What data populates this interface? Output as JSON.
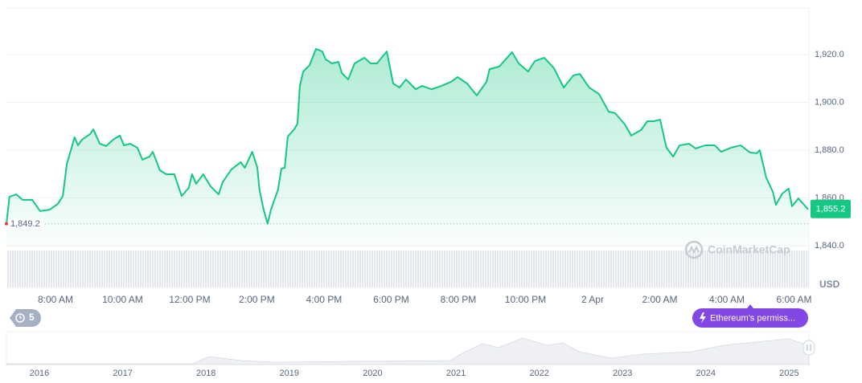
{
  "chart_data": {
    "type": "line",
    "x": [
      6.54,
      6.63,
      6.83,
      7.02,
      7.31,
      7.54,
      7.83,
      8.07,
      8.22,
      8.34,
      8.46,
      8.57,
      8.67,
      8.79,
      9.03,
      9.13,
      9.32,
      9.51,
      9.72,
      9.92,
      10.04,
      10.23,
      10.44,
      10.59,
      10.8,
      10.9,
      11.11,
      11.3,
      11.54,
      11.76,
      11.97,
      12.07,
      12.19,
      12.4,
      12.62,
      12.86,
      12.98,
      13.24,
      13.52,
      13.64,
      13.86,
      14.01,
      14.08,
      14.2,
      14.32,
      14.42,
      14.63,
      14.73,
      14.83,
      14.92,
      15.11,
      15.21,
      15.28,
      15.38,
      15.57,
      15.76,
      15.95,
      16.05,
      16.24,
      16.43,
      16.53,
      16.72,
      16.91,
      17.2,
      17.39,
      17.58,
      17.77,
      17.87,
      18.06,
      18.25,
      18.44,
      18.73,
      18.92,
      19.21,
      19.5,
      19.78,
      19.98,
      20.26,
      20.55,
      20.84,
      20.93,
      21.22,
      21.6,
      21.8,
      22.08,
      22.28,
      22.56,
      22.85,
      23.14,
      23.43,
      23.62,
      23.9,
      24.19,
      24.48,
      24.67,
      24.96,
      25.15,
      25.44,
      25.63,
      25.82,
      26.01,
      26.2,
      26.4,
      26.59,
      26.87,
      27.07,
      27.35,
      27.64,
      27.83,
      28.12,
      28.41,
      28.69,
      28.89,
      28.98,
      29.17,
      29.37,
      29.46,
      29.65,
      29.84,
      29.94,
      30.13,
      30.42
    ],
    "series": [
      {
        "color": "#16c784",
        "values": [
          1849.2,
          1860.5,
          1861.5,
          1859.2,
          1859.2,
          1854.5,
          1855.1,
          1857.5,
          1860.8,
          1874.3,
          1880.0,
          1885.4,
          1882.0,
          1884.4,
          1886.7,
          1888.7,
          1882.7,
          1881.7,
          1884.4,
          1886.1,
          1882.0,
          1882.7,
          1881.0,
          1876.0,
          1877.3,
          1879.3,
          1871.6,
          1869.9,
          1869.9,
          1860.8,
          1864.2,
          1869.9,
          1865.9,
          1869.9,
          1864.9,
          1861.5,
          1866.6,
          1871.9,
          1875.0,
          1872.6,
          1879.3,
          1872.9,
          1863.2,
          1855.1,
          1849.2,
          1855.1,
          1863.5,
          1872.3,
          1872.6,
          1885.7,
          1888.7,
          1891.1,
          1906.9,
          1912.9,
          1915.6,
          1922.4,
          1921.3,
          1918.0,
          1916.3,
          1917.0,
          1912.3,
          1909.6,
          1916.3,
          1918.7,
          1916.3,
          1916.3,
          1919.7,
          1921.3,
          1907.9,
          1906.2,
          1909.6,
          1905.5,
          1906.9,
          1905.5,
          1906.9,
          1908.6,
          1910.6,
          1907.9,
          1902.9,
          1908.6,
          1913.9,
          1915.0,
          1921.0,
          1916.3,
          1912.9,
          1917.3,
          1918.7,
          1914.3,
          1906.2,
          1911.3,
          1911.9,
          1906.2,
          1903.5,
          1896.1,
          1895.5,
          1890.8,
          1886.1,
          1888.4,
          1892.1,
          1892.1,
          1892.8,
          1881.0,
          1877.3,
          1882.0,
          1882.7,
          1880.7,
          1882.0,
          1882.0,
          1879.3,
          1881.0,
          1882.0,
          1879.0,
          1878.7,
          1880.0,
          1868.6,
          1862.5,
          1857.1,
          1861.8,
          1863.9,
          1856.5,
          1859.8,
          1855.2
        ]
      }
    ],
    "xlim": [
      6.54,
      30.42
    ],
    "xticks": [
      {
        "value": 8,
        "label": "8:00 AM"
      },
      {
        "value": 10,
        "label": "10:00 AM"
      },
      {
        "value": 12,
        "label": "12:00 PM"
      },
      {
        "value": 14,
        "label": "2:00 PM"
      },
      {
        "value": 16,
        "label": "4:00 PM"
      },
      {
        "value": 18,
        "label": "6:00 PM"
      },
      {
        "value": 20,
        "label": "8:00 PM"
      },
      {
        "value": 22,
        "label": "10:00 PM"
      },
      {
        "value": 24,
        "label": "2 Apr"
      },
      {
        "value": 26,
        "label": "2:00 AM"
      },
      {
        "value": 28,
        "label": "4:00 AM"
      },
      {
        "value": 30,
        "label": "6:00 AM"
      }
    ],
    "ylim": [
      1840,
      1940
    ],
    "yticks": [
      {
        "value": 1840,
        "label": "1,840.0"
      },
      {
        "value": 1860,
        "label": "1,860.0"
      },
      {
        "value": 1880,
        "label": "1,880.0"
      },
      {
        "value": 1900,
        "label": "1,900.0"
      },
      {
        "value": 1920,
        "label": "1,920.0"
      }
    ],
    "grid": true,
    "y_unit": "USD",
    "open_label": {
      "value": 1849.2,
      "label": "1,849.2"
    },
    "current_label": {
      "value": 1855.2,
      "label": "1,855.2"
    },
    "min_color": "#ea3943"
  },
  "watermark": "CoinMarketCap",
  "event_badge": "5",
  "news_pill": "Ethereum's permiss...",
  "navigator": {
    "years": [
      "2016",
      "2017",
      "2018",
      "2019",
      "2020",
      "2021",
      "2022",
      "2023",
      "2024",
      "2025"
    ]
  }
}
